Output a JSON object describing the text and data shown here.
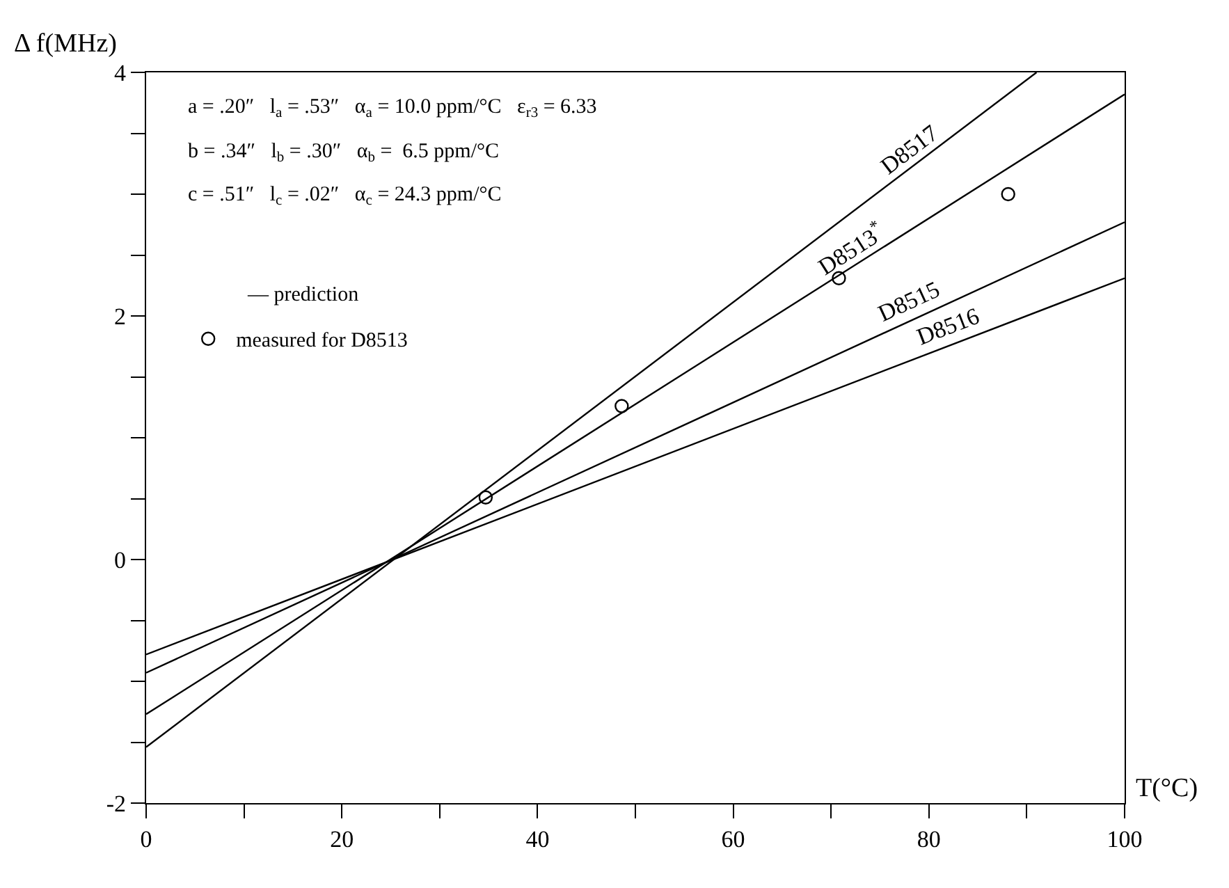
{
  "chart_data": {
    "type": "line",
    "xlabel": "T(°C)",
    "ylabel": "Δ f(MHz)",
    "xlim": [
      0,
      100
    ],
    "ylim": [
      -2,
      4
    ],
    "xticks": [
      0,
      {
        "value": 10,
        "label": null
      },
      20,
      {
        "value": 30,
        "label": null
      },
      40,
      {
        "value": 50,
        "label": null
      },
      60,
      {
        "value": 70,
        "label": null
      },
      80,
      {
        "value": 90,
        "label": null
      },
      100
    ],
    "yticks": [
      -2,
      {
        "value": -1.5,
        "label": null
      },
      {
        "value": -1,
        "label": null
      },
      {
        "value": -0.5,
        "label": null
      },
      0,
      {
        "value": 0.5,
        "label": null
      },
      {
        "value": 1,
        "label": null
      },
      {
        "value": 1.5,
        "label": null
      },
      2,
      {
        "value": 2.5,
        "label": null
      },
      {
        "value": 3,
        "label": null
      },
      {
        "value": 3.5,
        "label": null
      },
      4
    ],
    "legend": "top left",
    "line_style": "solid",
    "series": [
      {
        "name": "D8517",
        "color": "#000000",
        "x": [
          0,
          91
        ],
        "values": [
          -1.54,
          4.0
        ]
      },
      {
        "name": "D8513$^{*}$",
        "color": "#000000",
        "x": [
          0,
          100
        ],
        "values": [
          -1.27,
          3.82
        ]
      },
      {
        "name": "D8515",
        "color": "#000000",
        "x": [
          0,
          100
        ],
        "values": [
          -0.93,
          2.77
        ]
      },
      {
        "name": "D8516",
        "color": "#000000",
        "x": [
          0,
          100
        ],
        "values": [
          -0.78,
          2.31
        ]
      },
      {
        "name": "measured for D8513",
        "type": "scatter",
        "marker": "circle",
        "color": "#000000",
        "x": [
          34.7,
          48.6,
          70.8,
          88.1
        ],
        "values": [
          0.51,
          1.26,
          2.31,
          3.0
        ]
      }
    ],
    "annotations": [
      "a = .20″   l$_{a}$ = .53″   α$_{a}$ = 10.0 ppm/°C   ε$_{r3}$ = 6.33",
      "b = .34″   l$_{b}$ = .30″   α$_{b}$ =  6.5 ppm/°C",
      "c = .51″   l$_{c}$ = .02″   α$_{c}$ = 24.3 ppm/°C",
      "— prediction"
    ]
  }
}
